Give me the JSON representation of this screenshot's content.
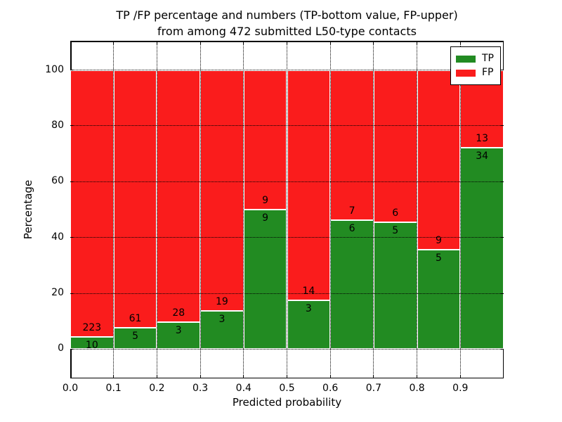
{
  "figure": {
    "title_line1": "TP /FP percentage and numbers (TP-bottom value, FP-upper)",
    "title_line2": "from among 472 submitted L50-type contacts"
  },
  "chart_data": {
    "type": "bar",
    "stacked": true,
    "normalized": "each bin stacked to 100%",
    "title": "TP /FP percentage and numbers (TP-bottom value, FP-upper)\nfrom among 472 submitted L50-type contacts",
    "xlabel": "Predicted probability",
    "ylabel": "Percentage",
    "total_contacts": 472,
    "bin_edges": [
      0.0,
      0.1,
      0.2,
      0.3,
      0.4,
      0.5,
      0.6,
      0.7,
      0.8,
      0.9,
      1.0
    ],
    "series": [
      {
        "name": "TP",
        "color": "#228b22",
        "counts": [
          10,
          5,
          3,
          3,
          9,
          3,
          6,
          5,
          5,
          34
        ],
        "percent": [
          4.3,
          7.6,
          9.7,
          13.6,
          50.0,
          17.6,
          46.2,
          45.5,
          35.7,
          72.3
        ]
      },
      {
        "name": "FP",
        "color": "#fa1c1c",
        "counts": [
          223,
          61,
          28,
          19,
          9,
          14,
          7,
          6,
          9,
          13
        ],
        "percent": [
          95.7,
          92.4,
          90.3,
          86.4,
          50.0,
          82.4,
          53.8,
          54.5,
          64.3,
          27.7
        ]
      }
    ],
    "xticks": {
      "values": [
        0.0,
        0.1,
        0.2,
        0.3,
        0.4,
        0.5,
        0.6,
        0.7,
        0.8,
        0.9
      ],
      "labels": [
        "0.0",
        "0.1",
        "0.2",
        "0.3",
        "0.4",
        "0.5",
        "0.6",
        "0.7",
        "0.8",
        "0.9"
      ]
    },
    "yticks": {
      "values": [
        0,
        20,
        40,
        60,
        80,
        100
      ],
      "labels": [
        "0",
        "20",
        "40",
        "60",
        "80",
        "100"
      ]
    },
    "xlim": [
      0.0,
      1.0
    ],
    "ylim": [
      -10.5,
      110.5
    ],
    "grid": {
      "linestyle": "dotted",
      "color": "#000000"
    },
    "bar_edge_color": "#ffffff",
    "legend": {
      "position": "upper right",
      "entries": [
        {
          "label": "TP",
          "color": "#228b22"
        },
        {
          "label": "FP",
          "color": "#fa1c1c"
        }
      ]
    }
  }
}
